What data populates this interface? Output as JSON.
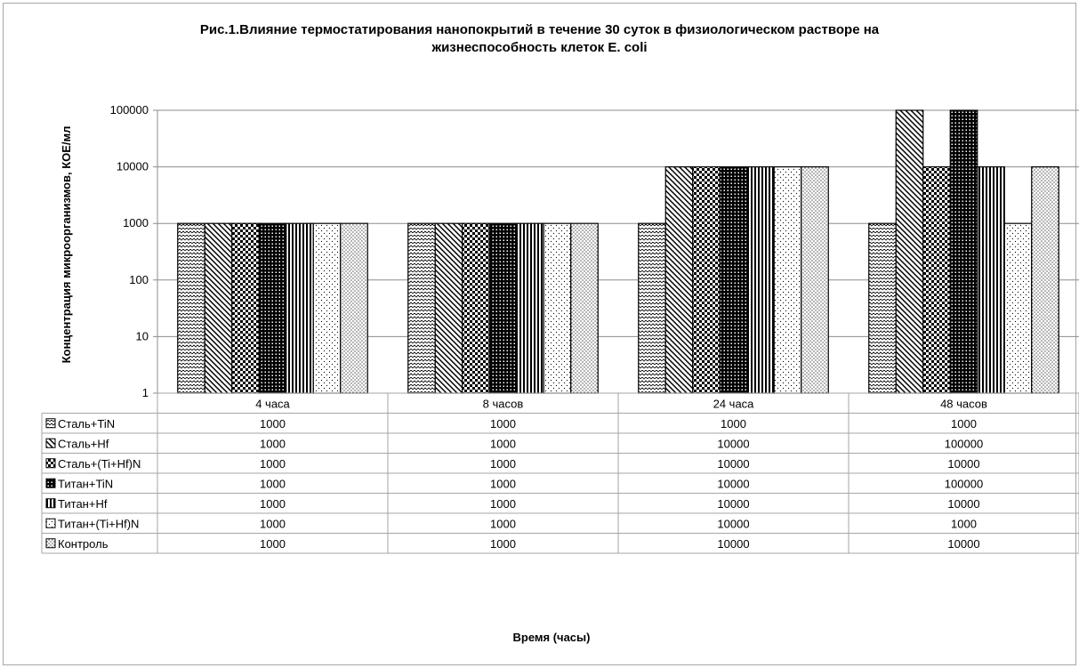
{
  "chart_data": {
    "type": "bar",
    "title": [
      "Рис.1.Влияние термостатирования нанопокрытий в течение 30 суток в физиологическом растворе на",
      "жизнеспособность клеток E. coli"
    ],
    "xlabel": "Время (часы)",
    "ylabel": "Концентрация микроорганизмов, КОЕ/мл",
    "yscale": "log",
    "ylim": [
      1,
      100000
    ],
    "y_ticks": [
      "1",
      "10",
      "100",
      "1000",
      "10000",
      "100000"
    ],
    "y_tick_values": [
      1,
      10,
      100,
      1000,
      10000,
      100000
    ],
    "grid": true,
    "legend": "data-table",
    "categories": [
      "4 часа",
      "8 часов",
      "24 часа",
      "48 часов"
    ],
    "series": [
      {
        "name": "Сталь+TiN",
        "pattern": "zigzag",
        "values": [
          1000,
          1000,
          1000,
          1000
        ],
        "labels": [
          "1000",
          "1000",
          "1000",
          "1000"
        ]
      },
      {
        "name": "Сталь+Hf",
        "pattern": "diagonal",
        "values": [
          1000,
          1000,
          10000,
          100000
        ],
        "labels": [
          "1000",
          "1000",
          "10000",
          "100000"
        ]
      },
      {
        "name": "Сталь+(Ti+Hf)N",
        "pattern": "checker",
        "values": [
          1000,
          1000,
          10000,
          10000
        ],
        "labels": [
          "1000",
          "1000",
          "10000",
          "10000"
        ]
      },
      {
        "name": "Титан+TiN",
        "pattern": "grid",
        "values": [
          1000,
          1000,
          10000,
          100000
        ],
        "labels": [
          "1000",
          "1000",
          "10000",
          "100000"
        ]
      },
      {
        "name": "Титан+Hf",
        "pattern": "vertical",
        "values": [
          1000,
          1000,
          10000,
          10000
        ],
        "labels": [
          "1000",
          "1000",
          "10000",
          "10000"
        ]
      },
      {
        "name": "Титан+(Ti+Hf)N",
        "pattern": "sparse-dots",
        "values": [
          1000,
          1000,
          10000,
          1000
        ],
        "labels": [
          "1000",
          "1000",
          "10000",
          "1000"
        ]
      },
      {
        "name": "Контроль",
        "pattern": "dense-dots",
        "values": [
          1000,
          1000,
          10000,
          10000
        ],
        "labels": [
          "1000",
          "1000",
          "10000",
          "10000"
        ]
      }
    ]
  }
}
